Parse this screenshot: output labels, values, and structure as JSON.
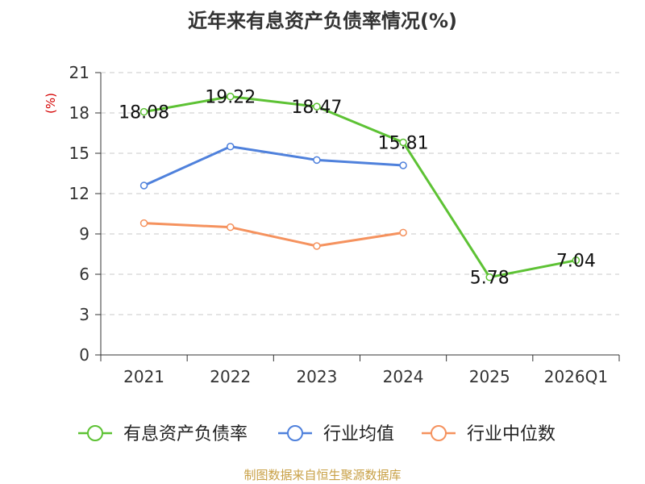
{
  "page": {
    "title": "近年来有息资产负债率情况(%)",
    "source": "制图数据来自恒生聚源数据库"
  },
  "chart_data": {
    "type": "line",
    "title": "近年来有息资产负债率情况(%)",
    "ylabel": "(%)",
    "xlabel": "",
    "categories": [
      "2021",
      "2022",
      "2023",
      "2024",
      "2025",
      "2026Q1"
    ],
    "ylim": [
      0,
      21
    ],
    "yticks": [
      0,
      3,
      6,
      9,
      12,
      15,
      18,
      21
    ],
    "grid": true,
    "legend_position": "bottom",
    "series": [
      {
        "name": "有息资产负债率",
        "color": "#5dc234",
        "values": [
          18.08,
          19.22,
          18.47,
          15.81,
          5.78,
          7.04
        ],
        "data_labels": [
          "18.08",
          "19.22",
          "18.47",
          "15.81",
          "5.78",
          "7.04"
        ]
      },
      {
        "name": "行业均值",
        "color": "#4f81dc",
        "values": [
          12.6,
          15.5,
          14.5,
          14.1,
          null,
          null
        ]
      },
      {
        "name": "行业中位数",
        "color": "#f5925e",
        "values": [
          9.8,
          9.5,
          8.1,
          9.1,
          null,
          null
        ]
      }
    ]
  }
}
